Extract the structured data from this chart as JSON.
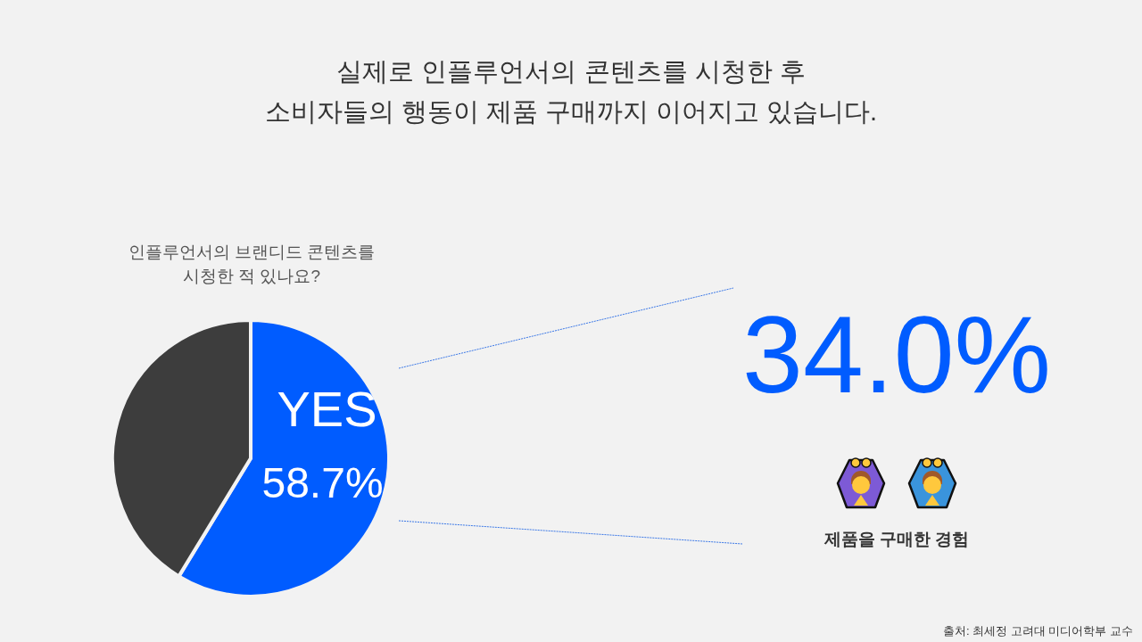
{
  "chart_data": [
    {
      "type": "pie",
      "title": "실제로 인플루언서의 콘텐츠를 시청한 후\n소비자들의 행동이 제품 구매까지 이어지고 있습니다.",
      "subtitle": "인플루언서의 브랜디드 콘텐츠를\n시청한 적 있나요?",
      "categories": [
        "YES",
        null
      ],
      "values": [
        58.7,
        41.3
      ],
      "colors": [
        "#005cff",
        "#3d3d3d"
      ],
      "value_labels": [
        "58.7%",
        null
      ],
      "annotations": [
        "출처: 최세정 고려대 미디어학부 교수"
      ]
    },
    {
      "type": "other",
      "annotations": [
        "34.0%",
        "제품을 구매한 경험"
      ]
    }
  ]
}
